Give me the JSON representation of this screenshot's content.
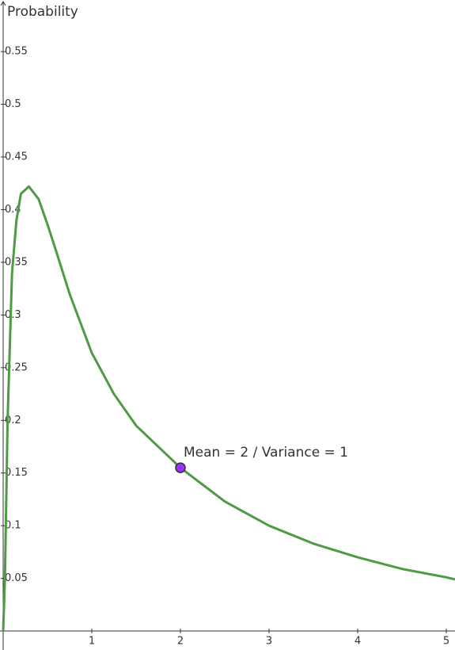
{
  "chart_data": {
    "type": "line",
    "y_label": "Probability",
    "x": [
      0,
      0.02,
      0.05,
      0.1,
      0.15,
      0.2,
      0.29,
      0.4,
      0.5,
      0.6,
      0.75,
      1.0,
      1.25,
      1.5,
      2,
      2.5,
      3,
      3.5,
      4,
      4.5,
      5,
      5.098
    ],
    "series": [
      {
        "color": "#4f9a45",
        "values": [
          0,
          0.05,
          0.2,
          0.34,
          0.39,
          0.415,
          0.422,
          0.41,
          0.386,
          0.36,
          0.32,
          0.264,
          0.225,
          0.195,
          0.155,
          0.123,
          0.1,
          0.083,
          0.07,
          0.059,
          0.051,
          0.049
        ]
      }
    ],
    "point": {
      "x": 2,
      "y": 0.155,
      "label": "Mean = 2 / Variance = 1",
      "color": "#9933ff"
    },
    "xlim": [
      0,
      5.098
    ],
    "ylim": [
      -0.018,
      0.599
    ],
    "xticks": [
      1,
      2,
      3,
      4,
      5
    ],
    "yticks": [
      0.05,
      0.1,
      0.15,
      0.2,
      0.25,
      0.3,
      0.35,
      0.4,
      0.45,
      0.5,
      0.55
    ]
  }
}
